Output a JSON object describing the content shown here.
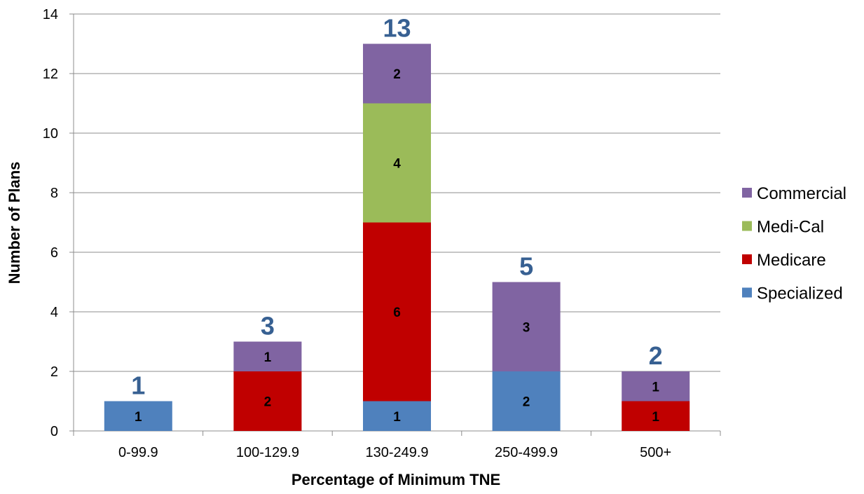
{
  "chart_data": {
    "type": "bar",
    "stacked": true,
    "xlabel": "Percentage of Minimum TNE",
    "ylabel": "Number of Plans",
    "categories": [
      "0-99.9",
      "100-129.9",
      "130-249.9",
      "250-499.9",
      "500+"
    ],
    "series": [
      {
        "name": "Specialized",
        "values": [
          1,
          0,
          1,
          2,
          0
        ]
      },
      {
        "name": "Medicare",
        "values": [
          0,
          2,
          6,
          0,
          1
        ]
      },
      {
        "name": "Medi-Cal",
        "values": [
          0,
          0,
          4,
          0,
          0
        ]
      },
      {
        "name": "Commercial",
        "values": [
          0,
          1,
          2,
          3,
          1
        ]
      }
    ],
    "totals": [
      1,
      3,
      13,
      5,
      2
    ],
    "ylim": [
      0,
      14
    ],
    "yticks": [
      0,
      2,
      4,
      6,
      8,
      10,
      12,
      14
    ],
    "grid": true,
    "legend_position": "right",
    "legend_order": [
      "Commercial",
      "Medi-Cal",
      "Medicare",
      "Specialized"
    ],
    "colors": {
      "Specialized": "#4f81bd",
      "Medicare": "#c00000",
      "Medi-Cal": "#9bbb59",
      "Commercial": "#8064a2",
      "total_label": "#376092",
      "gridline": "#8c8c8c"
    }
  }
}
